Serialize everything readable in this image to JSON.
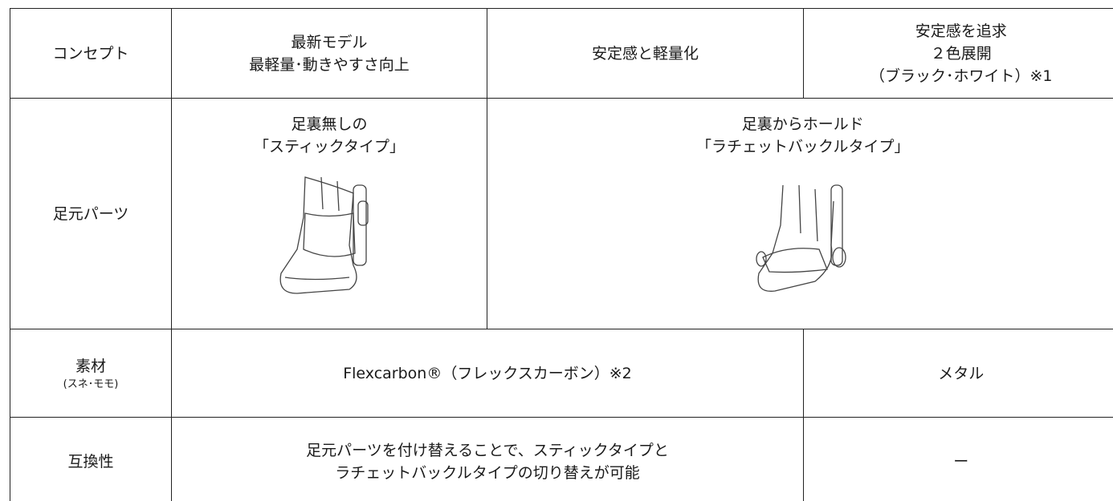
{
  "table": {
    "rows": [
      {
        "header": [
          "コンセプト"
        ],
        "cells": [
          [
            "最新モデル",
            "最軽量･動きやすさ向上"
          ],
          [
            "安定感と軽量化"
          ],
          [
            "安定感を追求",
            "２色展開",
            "（ブラック･ホワイト）※1"
          ]
        ]
      },
      {
        "header": [
          "足元パーツ"
        ],
        "cells": [
          [
            "足裏無しの",
            "「スティックタイプ」"
          ],
          [
            "足裏からホールド",
            "「ラチェットバックルタイプ」"
          ]
        ]
      },
      {
        "header": [
          "素材",
          "(スネ･モモ)"
        ],
        "cells": [
          [
            "Flexcarbon®（フレックスカーボン）※2"
          ],
          [
            "メタル"
          ]
        ]
      },
      {
        "header": [
          "互換性"
        ],
        "cells": [
          [
            "足元パーツを付け替えることで、スティックタイプと",
            "ラチェットバックルタイプの切り替えが可能"
          ],
          [
            "ー"
          ]
        ]
      }
    ]
  }
}
